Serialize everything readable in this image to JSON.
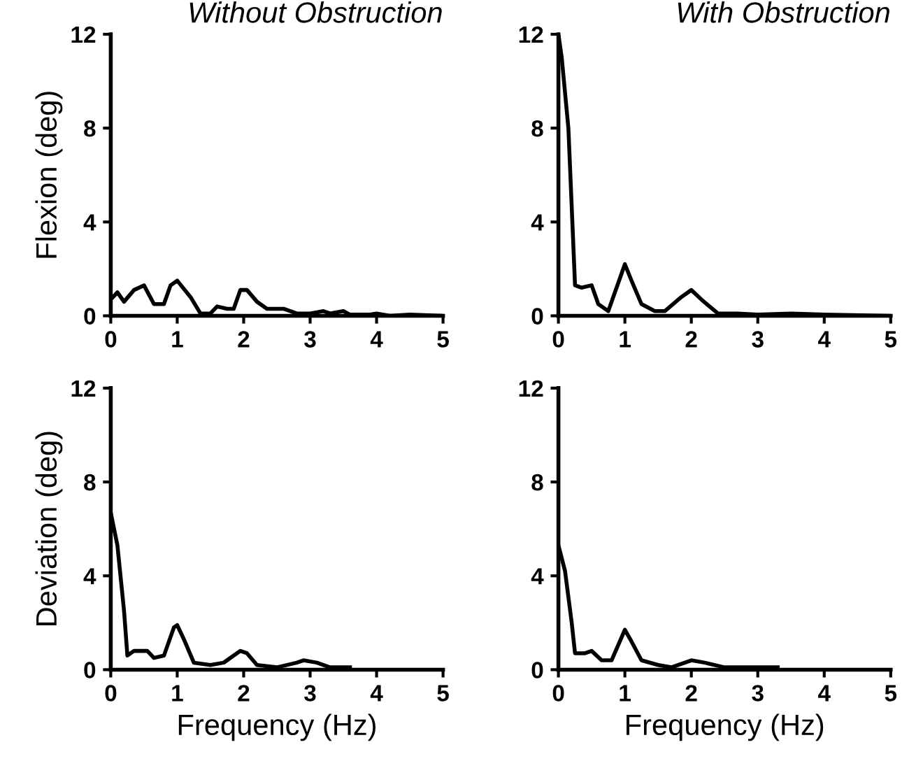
{
  "chart_data": [
    {
      "type": "line",
      "title": "Without Obstruction",
      "ylabel": "Flexion (deg)",
      "xlim": [
        0,
        5
      ],
      "ylim": [
        0,
        12
      ],
      "xticks": [
        0,
        1,
        2,
        3,
        4,
        5
      ],
      "yticks": [
        0,
        4,
        8,
        12
      ],
      "grid": false,
      "legend": false,
      "series": [
        {
          "color": "#000000",
          "x": [
            0,
            0.1,
            0.2,
            0.35,
            0.5,
            0.65,
            0.8,
            0.9,
            1.0,
            1.2,
            1.35,
            1.5,
            1.6,
            1.75,
            1.85,
            1.95,
            2.05,
            2.2,
            2.35,
            2.6,
            2.8,
            3.0,
            3.2,
            3.3,
            3.5,
            3.6,
            3.9,
            4.0,
            4.2,
            4.5,
            5.0
          ],
          "values": [
            0.7,
            1.0,
            0.6,
            1.1,
            1.3,
            0.5,
            0.5,
            1.3,
            1.5,
            0.8,
            0.1,
            0.1,
            0.4,
            0.3,
            0.3,
            1.1,
            1.1,
            0.6,
            0.3,
            0.3,
            0.1,
            0.1,
            0.2,
            0.1,
            0.2,
            0.05,
            0.05,
            0.1,
            0,
            0.05,
            0
          ]
        }
      ]
    },
    {
      "type": "line",
      "title": "With Obstruction",
      "xlim": [
        0,
        5
      ],
      "ylim": [
        0,
        12
      ],
      "xticks": [
        0,
        1,
        2,
        3,
        4,
        5
      ],
      "yticks": [
        0,
        4,
        8,
        12
      ],
      "grid": false,
      "legend": false,
      "series": [
        {
          "color": "#000000",
          "x": [
            0,
            0.05,
            0.15,
            0.25,
            0.35,
            0.5,
            0.6,
            0.75,
            1.0,
            1.1,
            1.25,
            1.45,
            1.6,
            1.85,
            2.0,
            2.15,
            2.4,
            2.7,
            3.0,
            3.5,
            4.0,
            5.0
          ],
          "values": [
            12,
            11,
            8,
            1.3,
            1.2,
            1.3,
            0.5,
            0.2,
            2.2,
            1.5,
            0.5,
            0.2,
            0.2,
            0.8,
            1.1,
            0.7,
            0.1,
            0.1,
            0.05,
            0.1,
            0.05,
            0
          ]
        }
      ]
    },
    {
      "type": "line",
      "ylabel": "Deviation (deg)",
      "xlabel": "Frequency (Hz)",
      "xlim": [
        0,
        5
      ],
      "ylim": [
        0,
        12
      ],
      "xticks": [
        0,
        1,
        2,
        3,
        4,
        5
      ],
      "yticks": [
        0,
        4,
        8,
        12
      ],
      "grid": false,
      "legend": false,
      "series": [
        {
          "color": "#000000",
          "x": [
            0,
            0.1,
            0.2,
            0.25,
            0.35,
            0.55,
            0.65,
            0.8,
            0.95,
            1.0,
            1.1,
            1.25,
            1.5,
            1.7,
            1.95,
            2.05,
            2.2,
            2.5,
            2.8,
            2.9,
            3.1,
            3.3,
            3.6
          ],
          "values": [
            6.7,
            5.3,
            2.5,
            0.6,
            0.8,
            0.8,
            0.5,
            0.6,
            1.8,
            1.9,
            1.3,
            0.3,
            0.2,
            0.3,
            0.8,
            0.7,
            0.2,
            0.1,
            0.3,
            0.4,
            0.3,
            0.1,
            0.1
          ]
        }
      ]
    },
    {
      "type": "line",
      "xlabel": "Frequency (Hz)",
      "xlim": [
        0,
        5
      ],
      "ylim": [
        0,
        12
      ],
      "xticks": [
        0,
        1,
        2,
        3,
        4,
        5
      ],
      "yticks": [
        0,
        4,
        8,
        12
      ],
      "grid": false,
      "legend": false,
      "series": [
        {
          "color": "#000000",
          "x": [
            0,
            0.1,
            0.2,
            0.25,
            0.4,
            0.5,
            0.65,
            0.8,
            1.0,
            1.1,
            1.25,
            1.5,
            1.7,
            2.0,
            2.2,
            2.5,
            2.8,
            3.3
          ],
          "values": [
            5.3,
            4.2,
            2.0,
            0.7,
            0.7,
            0.8,
            0.4,
            0.4,
            1.7,
            1.2,
            0.4,
            0.2,
            0.1,
            0.4,
            0.3,
            0.1,
            0.1,
            0.1
          ]
        }
      ]
    }
  ]
}
